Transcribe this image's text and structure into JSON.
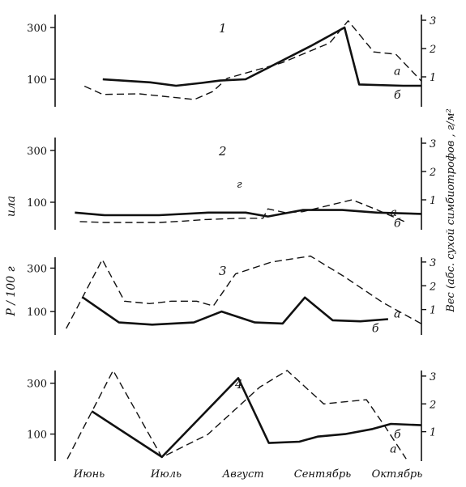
{
  "chart_data": {
    "type": "line",
    "left_axis_label": "P / 100 г",
    "left_axis_label_2": "ила",
    "right_axis_label": "Вес (абс. сухой симбиотрофов , г/м²",
    "x_labels": [
      "Июнь",
      "Июль",
      "Август",
      "Сентябрь",
      "Октябрь"
    ],
    "left_ticks": [
      "300",
      "100"
    ],
    "right_ticks": [
      "3",
      "2",
      "1"
    ],
    "left_ylim": [
      0,
      350
    ],
    "right_ylim": [
      0,
      3.2
    ],
    "panels": [
      {
        "number": "1",
        "series": [
          {
            "name": "а",
            "style": "dashed",
            "points": [
              [
                0.08,
                0.67
              ],
              [
                0.13,
                0.38
              ],
              [
                0.23,
                0.4
              ],
              [
                0.38,
                0.2
              ],
              [
                0.43,
                0.48
              ],
              [
                0.47,
                0.95
              ],
              [
                0.62,
                1.5
              ],
              [
                0.75,
                2.2
              ],
              [
                0.8,
                2.98
              ],
              [
                0.87,
                1.88
              ],
              [
                0.93,
                1.8
              ],
              [
                1.0,
                0.85
              ]
            ]
          },
          {
            "name": "б",
            "style": "solid",
            "points": [
              [
                0.13,
                100
              ],
              [
                0.26,
                88
              ],
              [
                0.33,
                75
              ],
              [
                0.4,
                86
              ],
              [
                0.45,
                95
              ],
              [
                0.52,
                100
              ],
              [
                0.7,
                230
              ],
              [
                0.79,
                300
              ],
              [
                0.83,
                80
              ],
              [
                0.95,
                75
              ],
              [
                1.0,
                75
              ]
            ]
          }
        ]
      },
      {
        "number": "2",
        "annotation": "г",
        "series": [
          {
            "name": "а",
            "style": "dashed",
            "points": [
              [
                0.1,
                0.23
              ],
              [
                0.2,
                0.2
              ],
              [
                0.42,
                0.2
              ],
              [
                0.52,
                0.25
              ],
              [
                0.6,
                0.3
              ],
              [
                0.75,
                0.35
              ],
              [
                0.84,
                0.35
              ],
              [
                0.86,
                0.68
              ],
              [
                0.93,
                0.55
              ],
              [
                1.0,
                0.58
              ],
              [
                1.2,
                1.0
              ],
              [
                1.3,
                0.65
              ],
              [
                1.42,
                0.2
              ]
            ]
          },
          {
            "name": "б",
            "style": "solid",
            "points": [
              [
                0.08,
                60
              ],
              [
                0.2,
                50
              ],
              [
                0.42,
                50
              ],
              [
                0.62,
                60
              ],
              [
                0.77,
                60
              ],
              [
                0.86,
                45
              ],
              [
                1.0,
                70
              ],
              [
                1.16,
                70
              ],
              [
                1.3,
                60
              ],
              [
                1.48,
                55
              ]
            ]
          }
        ]
      },
      {
        "number": "3",
        "series": [
          {
            "name": "а",
            "style": "dashed",
            "points": [
              [
                0.04,
                0.2
              ],
              [
                0.17,
                3.1
              ],
              [
                0.25,
                1.35
              ],
              [
                0.34,
                1.25
              ],
              [
                0.42,
                1.35
              ],
              [
                0.51,
                1.35
              ],
              [
                0.57,
                1.15
              ],
              [
                0.65,
                2.5
              ],
              [
                0.78,
                3.0
              ],
              [
                0.92,
                3.25
              ],
              [
                1.04,
                2.4
              ],
              [
                1.18,
                1.3
              ],
              [
                1.32,
                0.4
              ]
            ]
          },
          {
            "name": "б",
            "style": "solid",
            "points": [
              [
                0.1,
                165
              ],
              [
                0.23,
                50
              ],
              [
                0.35,
                40
              ],
              [
                0.5,
                50
              ],
              [
                0.6,
                100
              ],
              [
                0.72,
                50
              ],
              [
                0.82,
                45
              ],
              [
                0.9,
                165
              ],
              [
                1.0,
                60
              ],
              [
                1.1,
                55
              ],
              [
                1.2,
                65
              ]
            ]
          }
        ]
      },
      {
        "number": "4",
        "series": [
          {
            "name": "а",
            "style": "dashed",
            "points": [
              [
                0.04,
                0.02
              ],
              [
                0.19,
                3.2
              ],
              [
                0.35,
                0.08
              ],
              [
                0.5,
                0.9
              ],
              [
                0.67,
                2.6
              ],
              [
                0.76,
                3.2
              ],
              [
                0.88,
                2.0
              ],
              [
                1.02,
                2.15
              ],
              [
                1.08,
                1.2
              ],
              [
                1.15,
                0.02
              ]
            ]
          },
          {
            "name": "б",
            "style": "solid",
            "points": [
              [
                0.12,
                190
              ],
              [
                0.35,
                10
              ],
              [
                0.6,
                320
              ],
              [
                0.7,
                65
              ],
              [
                0.8,
                70
              ],
              [
                0.86,
                90
              ],
              [
                0.95,
                100
              ],
              [
                1.04,
                120
              ],
              [
                1.1,
                140
              ],
              [
                1.2,
                135
              ]
            ]
          }
        ]
      }
    ]
  }
}
